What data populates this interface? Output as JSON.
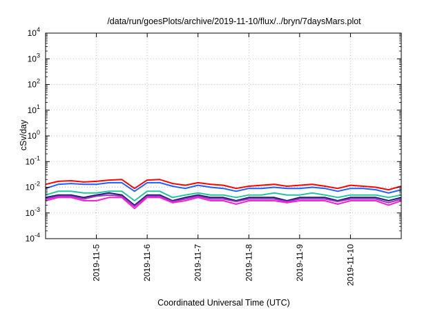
{
  "chart_data": {
    "type": "line",
    "title": "/data/run/goesPlots/archive/2019-11-10/flux/../bryn/7daysMars.plot",
    "xlabel": "Coordinated Universal Time (UTC)",
    "ylabel": "cSv/day",
    "yscale": "log",
    "ylim": [
      0.0001,
      10000
    ],
    "y_ticks": [
      {
        "value": 10000,
        "base": "10",
        "exp": "4"
      },
      {
        "value": 1000,
        "base": "10",
        "exp": "3"
      },
      {
        "value": 100,
        "base": "10",
        "exp": "2"
      },
      {
        "value": 10,
        "base": "10",
        "exp": "1"
      },
      {
        "value": 1,
        "base": "10",
        "exp": "0"
      },
      {
        "value": 0.1,
        "base": "10",
        "exp": "-1"
      },
      {
        "value": 0.01,
        "base": "10",
        "exp": "-2"
      },
      {
        "value": 0.001,
        "base": "10",
        "exp": "-3"
      },
      {
        "value": 0.0001,
        "base": "10",
        "exp": "-4"
      }
    ],
    "xlim_days": [
      0,
      7
    ],
    "x_ticks": [
      {
        "label": "2019-11-5",
        "day": 1
      },
      {
        "label": "2019-11-6",
        "day": 2
      },
      {
        "label": "2019-11-7",
        "day": 3
      },
      {
        "label": "2019-11-8",
        "day": 4
      },
      {
        "label": "2019-11-9",
        "day": 5
      },
      {
        "label": "2019-11-10",
        "day": 6
      }
    ],
    "grid": true,
    "series": [
      {
        "name": "red",
        "color": "#ff0000",
        "x": [
          0.0,
          0.25,
          0.5,
          0.75,
          1.0,
          1.25,
          1.5,
          1.75,
          2.0,
          2.25,
          2.5,
          2.75,
          3.0,
          3.25,
          3.5,
          3.75,
          4.0,
          4.25,
          4.5,
          4.75,
          5.0,
          5.25,
          5.5,
          5.75,
          6.0,
          6.25,
          6.5,
          6.75,
          7.0
        ],
        "values": [
          0.013,
          0.017,
          0.018,
          0.016,
          0.017,
          0.019,
          0.02,
          0.009,
          0.019,
          0.02,
          0.014,
          0.012,
          0.015,
          0.013,
          0.012,
          0.009,
          0.011,
          0.012,
          0.013,
          0.011,
          0.012,
          0.013,
          0.011,
          0.009,
          0.012,
          0.011,
          0.01,
          0.008,
          0.011
        ]
      },
      {
        "name": "blue",
        "color": "#1f5fff",
        "x": [
          0.0,
          0.25,
          0.5,
          0.75,
          1.0,
          1.25,
          1.5,
          1.75,
          2.0,
          2.25,
          2.5,
          2.75,
          3.0,
          3.25,
          3.5,
          3.75,
          4.0,
          4.25,
          4.5,
          4.75,
          5.0,
          5.25,
          5.5,
          5.75,
          6.0,
          6.25,
          6.5,
          6.75,
          7.0
        ],
        "values": [
          0.009,
          0.013,
          0.014,
          0.013,
          0.013,
          0.015,
          0.015,
          0.007,
          0.015,
          0.015,
          0.011,
          0.009,
          0.012,
          0.01,
          0.009,
          0.007,
          0.009,
          0.009,
          0.01,
          0.009,
          0.009,
          0.01,
          0.009,
          0.007,
          0.009,
          0.009,
          0.008,
          0.006,
          0.008
        ]
      },
      {
        "name": "teal",
        "color": "#22c4a0",
        "x": [
          0.0,
          0.25,
          0.5,
          0.75,
          1.0,
          1.25,
          1.5,
          1.75,
          2.0,
          2.25,
          2.5,
          2.75,
          3.0,
          3.25,
          3.5,
          3.75,
          4.0,
          4.25,
          4.5,
          4.75,
          5.0,
          5.25,
          5.5,
          5.75,
          6.0,
          6.25,
          6.5,
          6.75,
          7.0
        ],
        "values": [
          0.005,
          0.007,
          0.007,
          0.006,
          0.006,
          0.007,
          0.007,
          0.003,
          0.007,
          0.007,
          0.004,
          0.005,
          0.006,
          0.005,
          0.005,
          0.004,
          0.005,
          0.005,
          0.006,
          0.005,
          0.005,
          0.006,
          0.005,
          0.004,
          0.005,
          0.005,
          0.005,
          0.004,
          0.005
        ]
      },
      {
        "name": "navy",
        "color": "#1c1c6e",
        "x": [
          0.0,
          0.25,
          0.5,
          0.75,
          1.0,
          1.25,
          1.5,
          1.75,
          2.0,
          2.25,
          2.5,
          2.75,
          3.0,
          3.25,
          3.5,
          3.75,
          4.0,
          4.25,
          4.5,
          4.75,
          5.0,
          5.25,
          5.5,
          5.75,
          6.0,
          6.25,
          6.5,
          6.75,
          7.0
        ],
        "values": [
          0.004,
          0.005,
          0.005,
          0.004,
          0.005,
          0.006,
          0.005,
          0.002,
          0.005,
          0.005,
          0.003,
          0.004,
          0.005,
          0.004,
          0.004,
          0.003,
          0.004,
          0.004,
          0.004,
          0.003,
          0.004,
          0.004,
          0.004,
          0.003,
          0.004,
          0.004,
          0.004,
          0.003,
          0.004
        ]
      },
      {
        "name": "purple",
        "color": "#9b32c8",
        "x": [
          0.0,
          0.25,
          0.5,
          0.75,
          1.0,
          1.25,
          1.5,
          1.75,
          2.0,
          2.25,
          2.5,
          2.75,
          3.0,
          3.25,
          3.5,
          3.75,
          4.0,
          4.25,
          4.5,
          4.75,
          5.0,
          5.25,
          5.5,
          5.75,
          6.0,
          6.25,
          6.5,
          6.75,
          7.0
        ],
        "values": [
          0.0035,
          0.0045,
          0.0045,
          0.0035,
          0.0045,
          0.005,
          0.0045,
          0.0018,
          0.0045,
          0.0045,
          0.0028,
          0.0035,
          0.0045,
          0.0035,
          0.0035,
          0.0028,
          0.0035,
          0.0035,
          0.0035,
          0.0028,
          0.0035,
          0.0035,
          0.0035,
          0.0028,
          0.0035,
          0.0035,
          0.0035,
          0.0025,
          0.0035
        ]
      },
      {
        "name": "magenta",
        "color": "#ff1fd2",
        "x": [
          0.0,
          0.25,
          0.5,
          0.75,
          1.0,
          1.25,
          1.5,
          1.75,
          2.0,
          2.25,
          2.5,
          2.75,
          3.0,
          3.25,
          3.5,
          3.75,
          4.0,
          4.25,
          4.5,
          4.75,
          5.0,
          5.25,
          5.5,
          5.75,
          6.0,
          6.25,
          6.5,
          6.75,
          7.0
        ],
        "values": [
          0.003,
          0.004,
          0.004,
          0.003,
          0.003,
          0.004,
          0.004,
          0.0015,
          0.004,
          0.004,
          0.0025,
          0.003,
          0.004,
          0.003,
          0.003,
          0.0022,
          0.003,
          0.003,
          0.003,
          0.0025,
          0.003,
          0.003,
          0.003,
          0.0022,
          0.003,
          0.003,
          0.003,
          0.002,
          0.003
        ]
      }
    ]
  }
}
